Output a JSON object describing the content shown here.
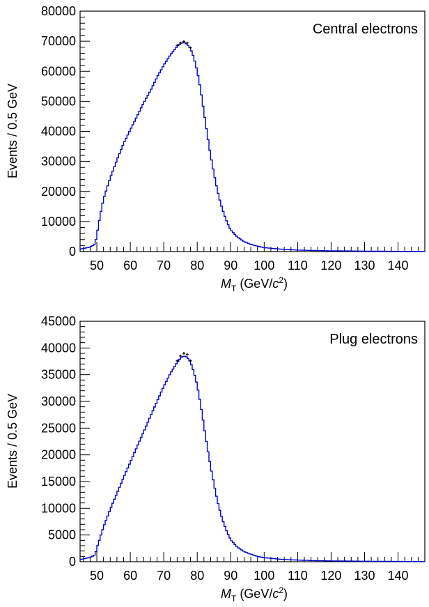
{
  "chart_data": [
    {
      "type": "line",
      "label": "Central electrons",
      "xlabel_symbol": "M",
      "xlabel_sub": "T",
      "xlabel_unit_pre": " (GeV/",
      "xlabel_unit_c": "c",
      "xlabel_unit_sup": "2",
      "xlabel_unit_post": ")",
      "ylabel": "Events / 0.5 GeV",
      "xlim": [
        45,
        148
      ],
      "ylim": [
        0,
        80000
      ],
      "xticks": [
        "50",
        "60",
        "70",
        "80",
        "90",
        "100",
        "110",
        "120",
        "130",
        "140"
      ],
      "yticks": [
        "0",
        "10000",
        "20000",
        "30000",
        "40000",
        "50000",
        "60000",
        "70000",
        "80000"
      ],
      "series": [
        {
          "color": "#0000cc",
          "style": "histogram",
          "x": [
            45,
            48,
            49.5,
            50,
            51,
            52,
            54,
            56,
            58,
            60,
            62,
            64,
            66,
            68,
            70,
            72,
            74,
            75,
            76,
            77,
            78,
            79,
            80,
            81,
            82,
            83,
            84,
            85,
            86,
            87,
            88,
            89,
            90,
            92,
            94,
            96,
            98,
            100,
            105,
            110,
            115,
            120,
            130,
            140,
            148
          ],
          "y": [
            800,
            1500,
            2500,
            5500,
            12000,
            17500,
            24500,
            30500,
            36000,
            40500,
            45000,
            49500,
            53500,
            58000,
            62000,
            65500,
            68300,
            69200,
            69600,
            69000,
            67500,
            64500,
            60000,
            54000,
            46500,
            39000,
            32000,
            26000,
            20500,
            16000,
            12500,
            9500,
            7200,
            4800,
            3300,
            2400,
            1800,
            1300,
            800,
            500,
            350,
            250,
            150,
            80,
            50
          ]
        },
        {
          "color": "#000000",
          "style": "points",
          "x": [
            74,
            75,
            76,
            77,
            78
          ],
          "y": [
            68600,
            69400,
            69900,
            69400,
            67800
          ]
        }
      ]
    },
    {
      "type": "line",
      "label": "Plug electrons",
      "xlabel_symbol": "M",
      "xlabel_sub": "T",
      "xlabel_unit_pre": " (GeV/",
      "xlabel_unit_c": "c",
      "xlabel_unit_sup": "2",
      "xlabel_unit_post": ")",
      "ylabel": "Events / 0.5 GeV",
      "xlim": [
        45,
        148
      ],
      "ylim": [
        0,
        45000
      ],
      "xticks": [
        "50",
        "60",
        "70",
        "80",
        "90",
        "100",
        "110",
        "120",
        "130",
        "140"
      ],
      "yticks": [
        "0",
        "5000",
        "10000",
        "15000",
        "20000",
        "25000",
        "30000",
        "35000",
        "40000",
        "45000"
      ],
      "series": [
        {
          "color": "#0000cc",
          "style": "histogram",
          "x": [
            45,
            48,
            49.5,
            50,
            51,
            52,
            54,
            56,
            58,
            60,
            62,
            64,
            66,
            68,
            70,
            72,
            74,
            75,
            76,
            77,
            78,
            79,
            80,
            81,
            82,
            83,
            84,
            85,
            86,
            87,
            88,
            89,
            90,
            92,
            94,
            96,
            98,
            100,
            105,
            110,
            115,
            120,
            130,
            140,
            148
          ],
          "y": [
            400,
            800,
            1300,
            2500,
            4500,
            6500,
            9800,
            12800,
            15800,
            18600,
            21500,
            24300,
            27200,
            30000,
            32800,
            35300,
            37300,
            38100,
            38500,
            38300,
            37300,
            35500,
            33000,
            29500,
            25500,
            21500,
            17800,
            14500,
            11500,
            9000,
            7000,
            5400,
            4100,
            2700,
            1900,
            1400,
            1000,
            750,
            450,
            300,
            200,
            150,
            90,
            50,
            30
          ]
        },
        {
          "color": "#000000",
          "style": "points",
          "x": [
            74,
            75,
            76,
            77,
            78
          ],
          "y": [
            37600,
            38500,
            39000,
            38800,
            37600
          ]
        }
      ]
    }
  ]
}
